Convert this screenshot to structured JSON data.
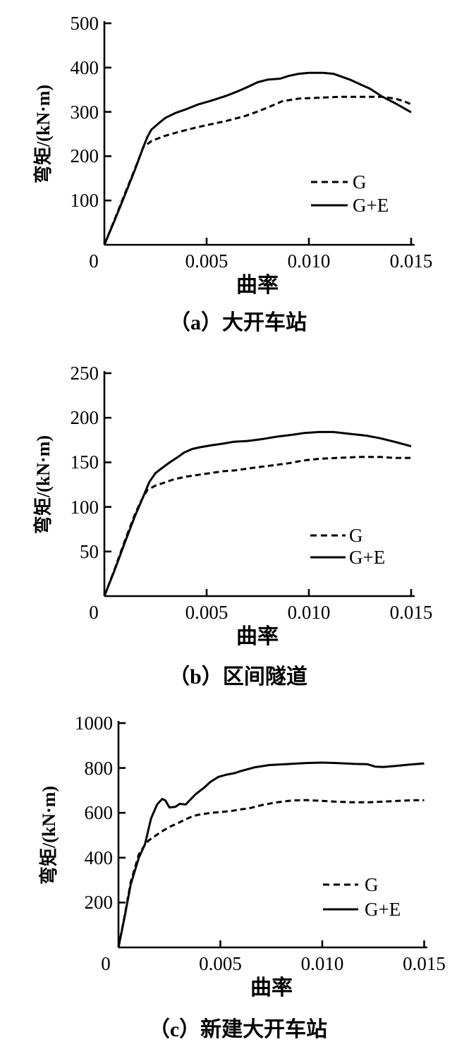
{
  "figure": {
    "background": "#ffffff",
    "ink": "#000000"
  },
  "chart_data": [
    {
      "type": "line",
      "panel": "a",
      "caption": "（a）大开车站",
      "xlabel": "曲率",
      "ylabel": "弯矩/(kN·m)",
      "xlim": [
        0,
        0.015
      ],
      "ylim": [
        0,
        500
      ],
      "grid": false,
      "legend_position": "inside-right-lower",
      "xticks": [
        0,
        0.005,
        0.01,
        0.015
      ],
      "xtick_labels": [
        "0",
        "0.005",
        "0.010",
        "0.015"
      ],
      "yticks": [
        100,
        200,
        300,
        400,
        500
      ],
      "ytick_labels": [
        "100",
        "200",
        "300",
        "400",
        "500"
      ],
      "series": [
        {
          "name": "G",
          "style": "dashed",
          "color": "#000000",
          "points": [
            [
              0,
              0
            ],
            [
              0.0005,
              57
            ],
            [
              0.001,
              115
            ],
            [
              0.0015,
              172
            ],
            [
              0.0019,
              220
            ],
            [
              0.0023,
              234
            ],
            [
              0.0029,
              245
            ],
            [
              0.0035,
              253
            ],
            [
              0.004,
              259
            ],
            [
              0.0046,
              266
            ],
            [
              0.0052,
              272
            ],
            [
              0.006,
              280
            ],
            [
              0.0069,
              291
            ],
            [
              0.0075,
              301
            ],
            [
              0.008,
              310
            ],
            [
              0.0087,
              324
            ],
            [
              0.0095,
              330
            ],
            [
              0.0105,
              332
            ],
            [
              0.0116,
              334
            ],
            [
              0.0128,
              334
            ],
            [
              0.0136,
              334
            ],
            [
              0.0142,
              330
            ],
            [
              0.0146,
              325
            ],
            [
              0.015,
              317
            ]
          ]
        },
        {
          "name": "G+E",
          "style": "solid",
          "color": "#000000",
          "points": [
            [
              0,
              0
            ],
            [
              0.0005,
              55
            ],
            [
              0.001,
              112
            ],
            [
              0.0015,
              170
            ],
            [
              0.0019,
              220
            ],
            [
              0.0021,
              243
            ],
            [
              0.0023,
              260
            ],
            [
              0.0027,
              276
            ],
            [
              0.003,
              287
            ],
            [
              0.0035,
              298
            ],
            [
              0.004,
              306
            ],
            [
              0.0046,
              317
            ],
            [
              0.0052,
              325
            ],
            [
              0.006,
              337
            ],
            [
              0.0065,
              346
            ],
            [
              0.007,
              356
            ],
            [
              0.0075,
              367
            ],
            [
              0.008,
              373
            ],
            [
              0.0086,
              375
            ],
            [
              0.009,
              381
            ],
            [
              0.0095,
              386
            ],
            [
              0.01,
              388
            ],
            [
              0.0107,
              388
            ],
            [
              0.0112,
              386
            ],
            [
              0.012,
              373
            ],
            [
              0.013,
              352
            ],
            [
              0.0136,
              334
            ],
            [
              0.0142,
              320
            ],
            [
              0.015,
              299
            ]
          ]
        }
      ]
    },
    {
      "type": "line",
      "panel": "b",
      "caption": "（b）区间隧道",
      "xlabel": "曲率",
      "ylabel": "弯矩/(kN·m)",
      "xlim": [
        0,
        0.015
      ],
      "ylim": [
        0,
        250
      ],
      "grid": false,
      "legend_position": "inside-right-lower",
      "xticks": [
        0,
        0.005,
        0.01,
        0.015
      ],
      "xtick_labels": [
        "0",
        "0.005",
        "0.010",
        "0.015"
      ],
      "yticks": [
        50,
        100,
        150,
        200,
        250
      ],
      "ytick_labels": [
        "50",
        "100",
        "150",
        "200",
        "250"
      ],
      "series": [
        {
          "name": "G",
          "style": "dashed",
          "color": "#000000",
          "points": [
            [
              0,
              0
            ],
            [
              0.0005,
              30
            ],
            [
              0.001,
              62
            ],
            [
              0.0015,
              92
            ],
            [
              0.0018,
              107
            ],
            [
              0.0021,
              119
            ],
            [
              0.0025,
              124
            ],
            [
              0.0029,
              127
            ],
            [
              0.0034,
              131
            ],
            [
              0.004,
              134
            ],
            [
              0.0046,
              136
            ],
            [
              0.0052,
              138
            ],
            [
              0.0058,
              140
            ],
            [
              0.0064,
              141
            ],
            [
              0.007,
              143
            ],
            [
              0.008,
              146
            ],
            [
              0.009,
              149
            ],
            [
              0.0097,
              152
            ],
            [
              0.0105,
              154
            ],
            [
              0.0114,
              155
            ],
            [
              0.0125,
              156
            ],
            [
              0.0135,
              156
            ],
            [
              0.0142,
              155
            ],
            [
              0.015,
              155
            ]
          ]
        },
        {
          "name": "G+E",
          "style": "solid",
          "color": "#000000",
          "points": [
            [
              0,
              0
            ],
            [
              0.0005,
              29
            ],
            [
              0.001,
              60
            ],
            [
              0.0015,
              90
            ],
            [
              0.0018,
              106
            ],
            [
              0.002,
              117
            ],
            [
              0.0022,
              128
            ],
            [
              0.0025,
              138
            ],
            [
              0.0029,
              145
            ],
            [
              0.0032,
              150
            ],
            [
              0.0036,
              156
            ],
            [
              0.0039,
              161
            ],
            [
              0.0043,
              165
            ],
            [
              0.0047,
              167
            ],
            [
              0.0052,
              169
            ],
            [
              0.0058,
              171
            ],
            [
              0.0063,
              173
            ],
            [
              0.007,
              174
            ],
            [
              0.0077,
              176
            ],
            [
              0.0085,
              179
            ],
            [
              0.0092,
              181
            ],
            [
              0.0098,
              183
            ],
            [
              0.0105,
              184
            ],
            [
              0.0112,
              184
            ],
            [
              0.012,
              182
            ],
            [
              0.0128,
              180
            ],
            [
              0.0135,
              177
            ],
            [
              0.0142,
              173
            ],
            [
              0.015,
              168
            ]
          ]
        }
      ]
    },
    {
      "type": "line",
      "panel": "c",
      "caption": "（c）新建大开车站",
      "xlabel": "曲率",
      "ylabel": "弯矩/(kN·m)",
      "xlim": [
        0,
        0.015
      ],
      "ylim": [
        0,
        1000
      ],
      "grid": false,
      "legend_position": "inside-right-lower",
      "xticks": [
        0,
        0.005,
        0.01,
        0.015
      ],
      "xtick_labels": [
        "0",
        "0.005",
        "0.010",
        "0.015"
      ],
      "yticks": [
        200,
        400,
        600,
        800,
        1000
      ],
      "ytick_labels": [
        "200",
        "400",
        "600",
        "800",
        "1000"
      ],
      "series": [
        {
          "name": "G",
          "style": "dashed",
          "color": "#000000",
          "points": [
            [
              0,
              0
            ],
            [
              0.0003,
              140
            ],
            [
              0.0006,
              290
            ],
            [
              0.001,
              415
            ],
            [
              0.0013,
              458
            ],
            [
              0.0015,
              478
            ],
            [
              0.0019,
              503
            ],
            [
              0.0022,
              521
            ],
            [
              0.0025,
              537
            ],
            [
              0.0029,
              553
            ],
            [
              0.0032,
              567
            ],
            [
              0.0036,
              583
            ],
            [
              0.0039,
              591
            ],
            [
              0.0043,
              597
            ],
            [
              0.0047,
              601
            ],
            [
              0.0051,
              604
            ],
            [
              0.0055,
              608
            ],
            [
              0.006,
              615
            ],
            [
              0.0065,
              622
            ],
            [
              0.007,
              634
            ],
            [
              0.0077,
              646
            ],
            [
              0.0085,
              655
            ],
            [
              0.0092,
              657
            ],
            [
              0.01,
              653
            ],
            [
              0.0108,
              649
            ],
            [
              0.0116,
              647
            ],
            [
              0.0123,
              647
            ],
            [
              0.013,
              650
            ],
            [
              0.0137,
              653
            ],
            [
              0.0144,
              656
            ],
            [
              0.015,
              656
            ]
          ]
        },
        {
          "name": "G+E",
          "style": "solid",
          "color": "#000000",
          "points": [
            [
              0,
              0
            ],
            [
              0.0003,
              135
            ],
            [
              0.0006,
              280
            ],
            [
              0.001,
              400
            ],
            [
              0.0013,
              460
            ],
            [
              0.0016,
              575
            ],
            [
              0.0019,
              638
            ],
            [
              0.00215,
              662
            ],
            [
              0.0023,
              655
            ],
            [
              0.0025,
              624
            ],
            [
              0.0028,
              627
            ],
            [
              0.003,
              640
            ],
            [
              0.0033,
              637
            ],
            [
              0.0035,
              656
            ],
            [
              0.0038,
              684
            ],
            [
              0.0042,
              712
            ],
            [
              0.0045,
              737
            ],
            [
              0.0049,
              760
            ],
            [
              0.0053,
              770
            ],
            [
              0.0057,
              777
            ],
            [
              0.006,
              786
            ],
            [
              0.0067,
              803
            ],
            [
              0.0074,
              813
            ],
            [
              0.0082,
              817
            ],
            [
              0.0092,
              822
            ],
            [
              0.01,
              824
            ],
            [
              0.0107,
              822
            ],
            [
              0.0116,
              818
            ],
            [
              0.0122,
              817
            ],
            [
              0.0126,
              806
            ],
            [
              0.013,
              804
            ],
            [
              0.0136,
              809
            ],
            [
              0.0143,
              815
            ],
            [
              0.015,
              820
            ]
          ]
        }
      ]
    }
  ]
}
